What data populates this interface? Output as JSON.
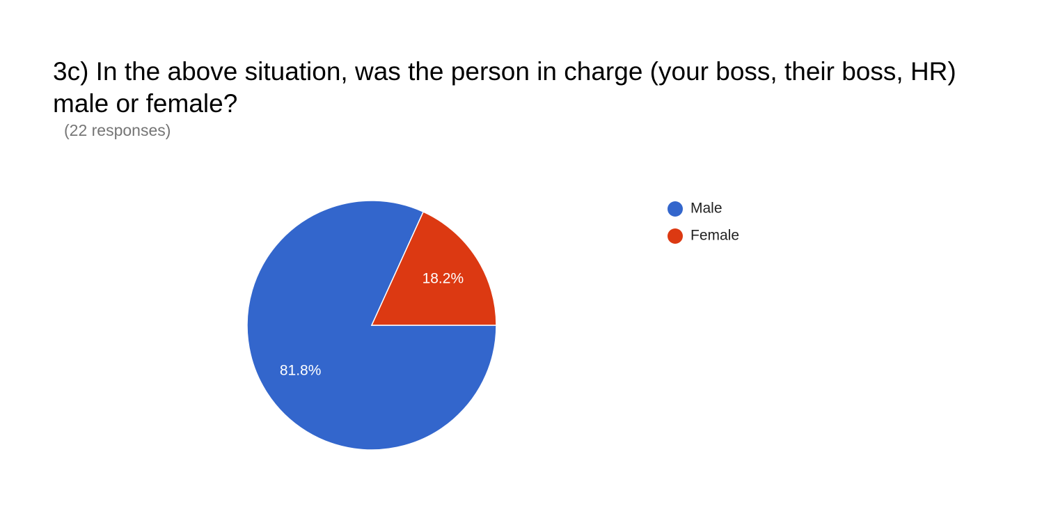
{
  "chart_data": {
    "type": "pie",
    "title": "3c) In the above situation, was the person in charge (your boss, their boss, HR) male or female?",
    "subtitle": "(22 responses)",
    "categories": [
      "Male",
      "Female"
    ],
    "values": [
      81.8,
      18.2
    ],
    "value_labels": [
      "81.8%",
      "18.2%"
    ],
    "colors": [
      "#3366cc",
      "#dc3912"
    ]
  }
}
